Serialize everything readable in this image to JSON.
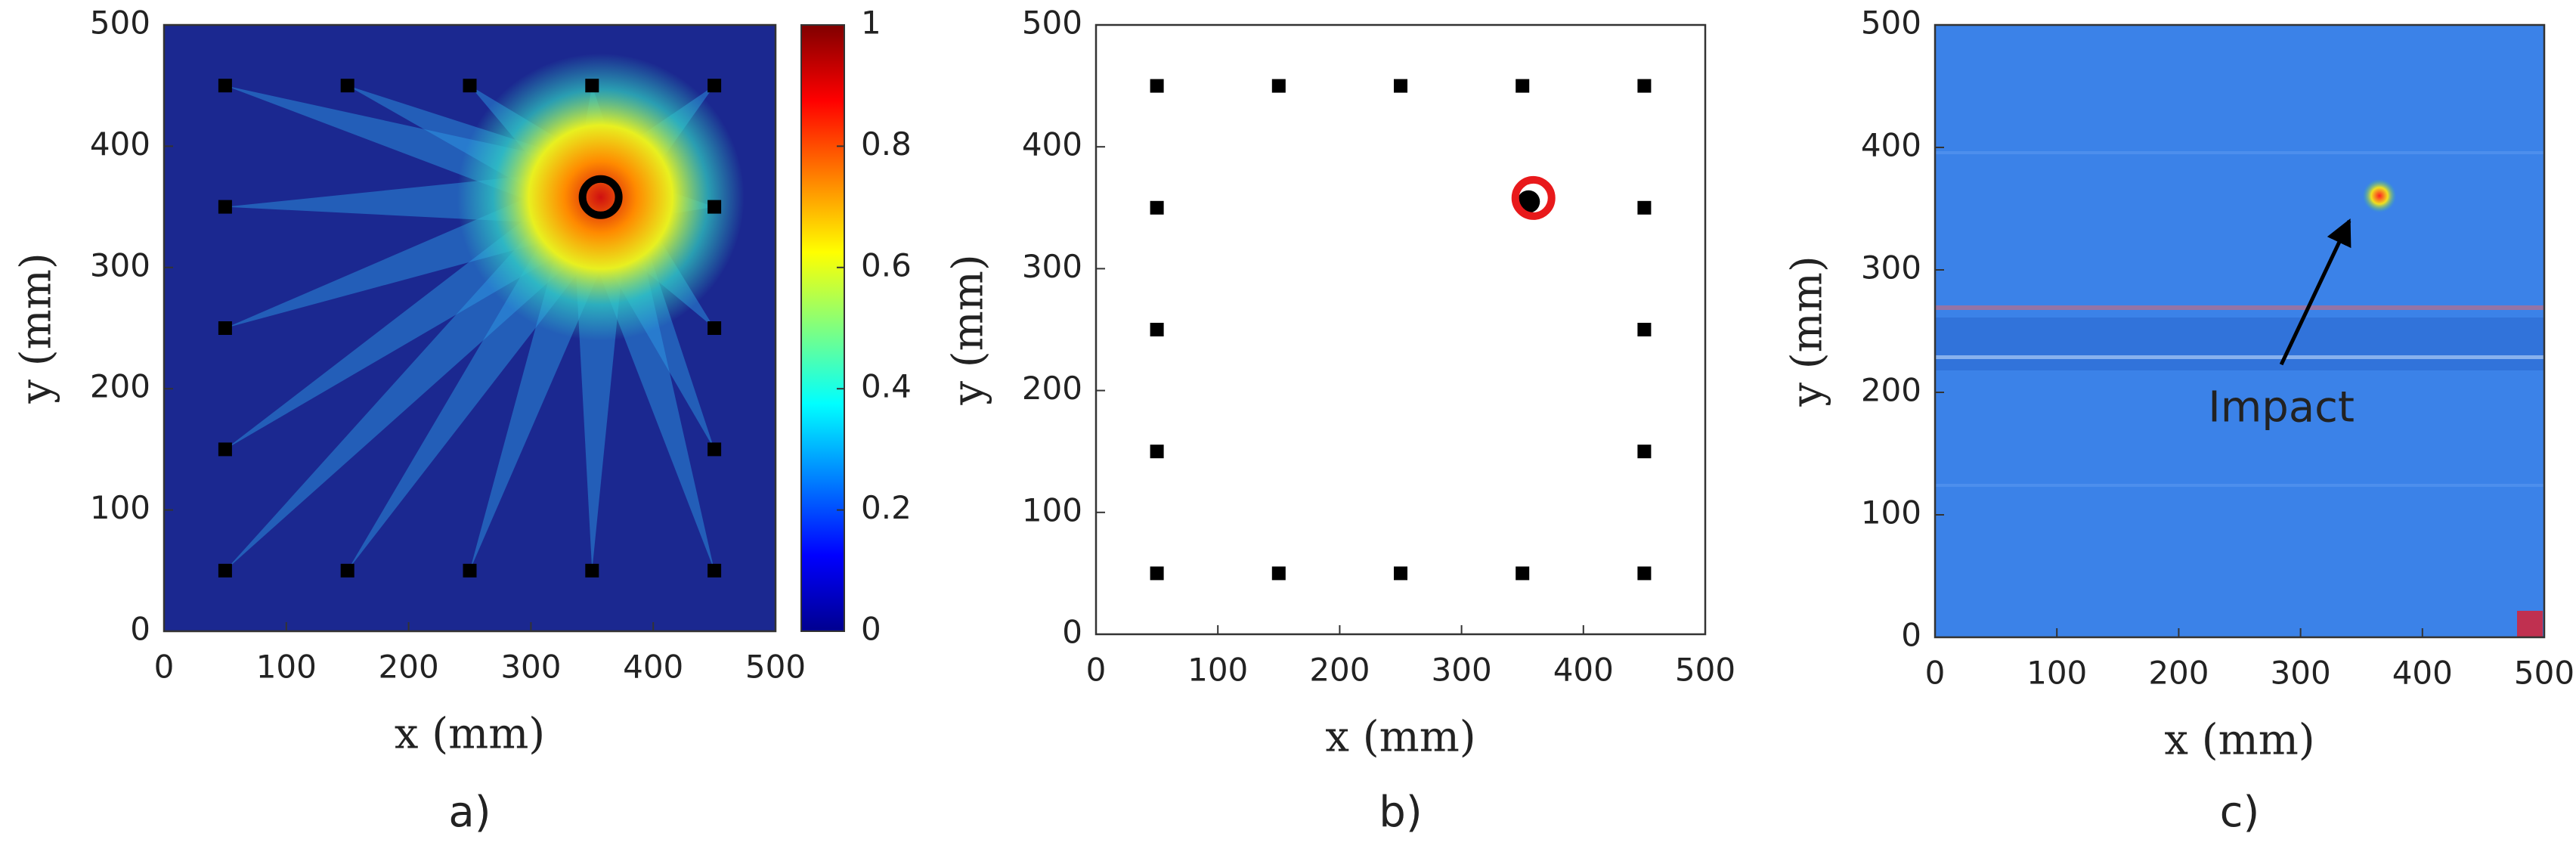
{
  "chart_data": [
    {
      "type": "heatmap",
      "label": "a)",
      "xlabel": "x (mm)",
      "ylabel": "y (mm)",
      "xlim": [
        0,
        500
      ],
      "ylim": [
        0,
        500
      ],
      "xticks": [
        0,
        100,
        200,
        300,
        400,
        500
      ],
      "yticks": [
        0,
        100,
        200,
        300,
        400,
        500
      ],
      "series": [
        {
          "marker": "square",
          "color": "#000000",
          "x": [
            50,
            150,
            250,
            350,
            450,
            50,
            450,
            50,
            450,
            50,
            450,
            50,
            150,
            250,
            350,
            450
          ],
          "y": [
            450,
            450,
            450,
            450,
            450,
            350,
            350,
            250,
            250,
            150,
            150,
            50,
            50,
            50,
            50,
            50
          ]
        },
        {
          "marker": "ring",
          "color": "#000000",
          "x": [
            357
          ],
          "y": [
            358
          ]
        }
      ],
      "colorbar": {
        "lim": [
          0,
          1
        ],
        "ticks": [
          0,
          0.2,
          0.4,
          0.6,
          0.8,
          1
        ]
      }
    },
    {
      "type": "scatter",
      "label": "b)",
      "xlabel": "x (mm)",
      "ylabel": "y (mm)",
      "xlim": [
        0,
        500
      ],
      "ylim": [
        0,
        500
      ],
      "xticks": [
        0,
        100,
        200,
        300,
        400,
        500
      ],
      "yticks": [
        0,
        100,
        200,
        300,
        400,
        500
      ],
      "series": [
        {
          "marker": "square",
          "color": "#000000",
          "x": [
            50,
            150,
            250,
            350,
            450,
            50,
            450,
            50,
            450,
            50,
            450,
            50,
            150,
            250,
            350,
            450
          ],
          "y": [
            450,
            450,
            450,
            450,
            450,
            350,
            350,
            250,
            250,
            150,
            150,
            50,
            50,
            50,
            50,
            50
          ]
        },
        {
          "marker": "dot",
          "color": "#000000",
          "x": [
            355
          ],
          "y": [
            355
          ]
        },
        {
          "marker": "ring",
          "color": "#e8191b",
          "x": [
            359
          ],
          "y": [
            358
          ]
        }
      ]
    },
    {
      "type": "image",
      "label": "c)",
      "xlabel": "x (mm)",
      "ylabel": "y (mm)",
      "xlim": [
        0,
        500
      ],
      "ylim": [
        0,
        500
      ],
      "xticks": [
        0,
        100,
        200,
        300,
        400,
        500
      ],
      "yticks": [
        0,
        100,
        200,
        300,
        400,
        500
      ],
      "annotation": {
        "text": "Impact",
        "x": 340,
        "y": 340
      }
    }
  ]
}
